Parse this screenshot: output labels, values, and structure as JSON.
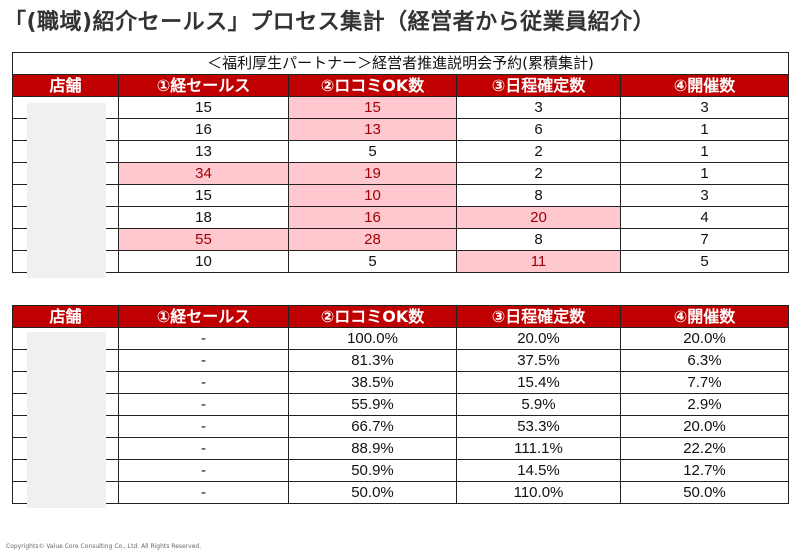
{
  "title": "「(職域)紹介セールス」プロセス集計（経営者から従業員紹介）",
  "table1": {
    "caption": "＜福利厚生パートナー＞経営者推進説明会予約(累積集計)",
    "headers": [
      "店舗",
      "①経セールス",
      "②ロコミOK数",
      "③日程確定数",
      "④開催数"
    ],
    "rows": [
      {
        "store": "",
        "values": [
          "15",
          "15",
          "3",
          "3"
        ],
        "highlight": [
          false,
          true,
          false,
          false
        ]
      },
      {
        "store": "",
        "values": [
          "16",
          "13",
          "6",
          "1"
        ],
        "highlight": [
          false,
          true,
          false,
          false
        ]
      },
      {
        "store": "",
        "values": [
          "13",
          "5",
          "2",
          "1"
        ],
        "highlight": [
          false,
          false,
          false,
          false
        ]
      },
      {
        "store": "",
        "values": [
          "34",
          "19",
          "2",
          "1"
        ],
        "highlight": [
          true,
          true,
          false,
          false
        ]
      },
      {
        "store": "",
        "values": [
          "15",
          "10",
          "8",
          "3"
        ],
        "highlight": [
          false,
          true,
          false,
          false
        ]
      },
      {
        "store": "",
        "values": [
          "18",
          "16",
          "20",
          "4"
        ],
        "highlight": [
          false,
          true,
          true,
          false
        ]
      },
      {
        "store": "",
        "values": [
          "55",
          "28",
          "8",
          "7"
        ],
        "highlight": [
          true,
          true,
          false,
          false
        ]
      },
      {
        "store": "",
        "values": [
          "10",
          "5",
          "11",
          "5"
        ],
        "highlight": [
          false,
          false,
          true,
          false
        ]
      }
    ]
  },
  "table2": {
    "headers": [
      "店舗",
      "①経セールス",
      "②ロコミOK数",
      "③日程確定数",
      "④開催数"
    ],
    "rows": [
      {
        "store": "",
        "values": [
          "-",
          "100.0%",
          "20.0%",
          "20.0%"
        ]
      },
      {
        "store": "",
        "values": [
          "-",
          "81.3%",
          "37.5%",
          "6.3%"
        ]
      },
      {
        "store": "",
        "values": [
          "-",
          "38.5%",
          "15.4%",
          "7.7%"
        ]
      },
      {
        "store": "",
        "values": [
          "-",
          "55.9%",
          "5.9%",
          "2.9%"
        ]
      },
      {
        "store": "",
        "values": [
          "-",
          "66.7%",
          "53.3%",
          "20.0%"
        ]
      },
      {
        "store": "",
        "values": [
          "-",
          "88.9%",
          "111.1%",
          "22.2%"
        ]
      },
      {
        "store": "",
        "values": [
          "-",
          "50.9%",
          "14.5%",
          "12.7%"
        ]
      },
      {
        "store": "",
        "values": [
          "-",
          "50.0%",
          "110.0%",
          "50.0%"
        ]
      }
    ]
  },
  "copyright": "Copyrights© Value Core Consulting Co., Ltd.  All Rights Reserved.",
  "colors": {
    "header": "#c00000",
    "highlight_bg": "#ffc7ce",
    "highlight_text": "#9c0006"
  }
}
